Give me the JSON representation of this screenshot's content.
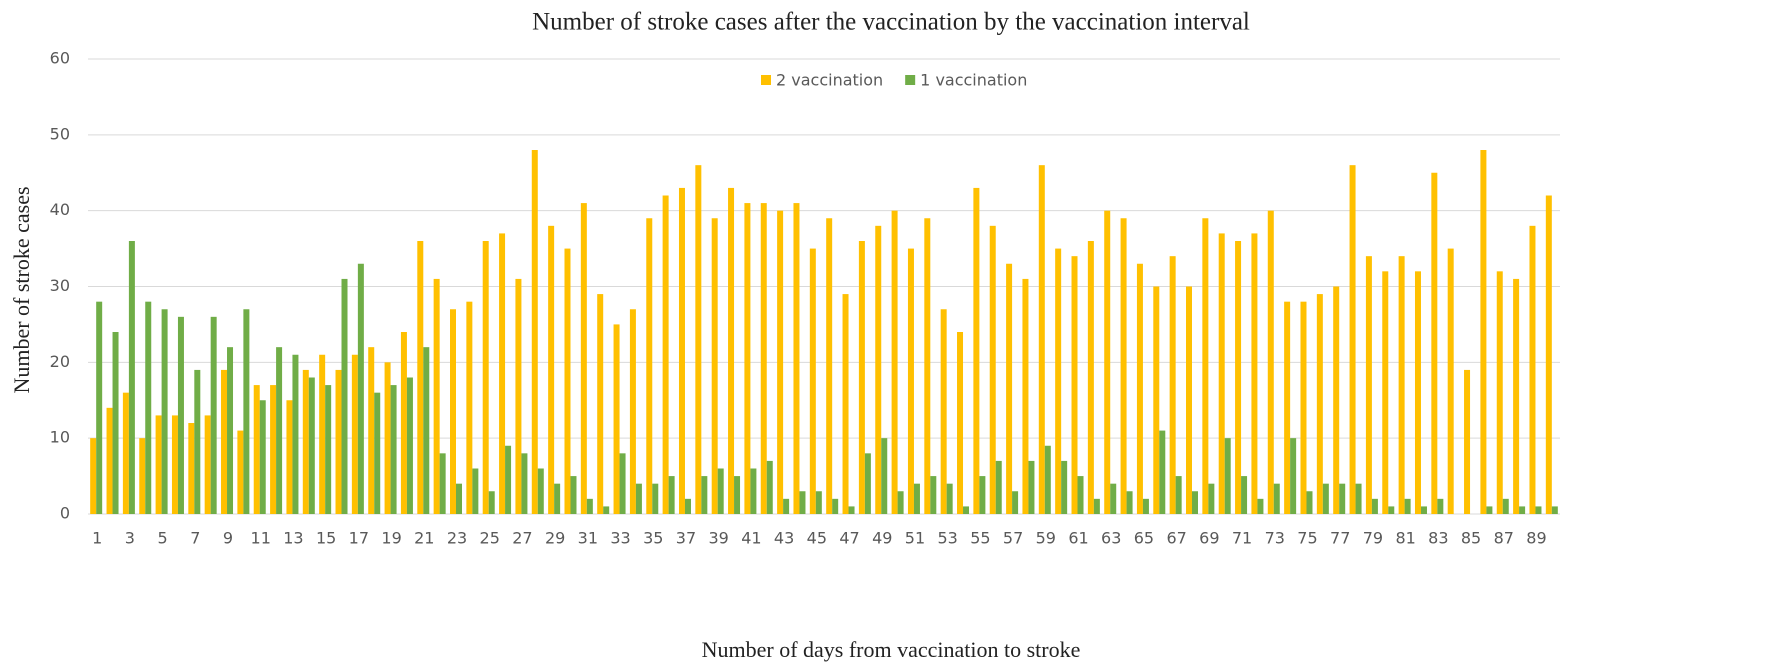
{
  "chart_data": {
    "type": "bar",
    "title": "Number of stroke cases after the vaccination by the vaccination interval",
    "x_label": "Number of days from vaccination to stroke",
    "y_label": "Number of stroke cases",
    "categories": [
      1,
      null,
      3,
      null,
      5,
      null,
      7,
      null,
      9,
      null,
      11,
      null,
      13,
      null,
      15,
      null,
      17,
      null,
      19,
      null,
      21,
      null,
      23,
      null,
      25,
      null,
      27,
      null,
      29,
      null,
      31,
      null,
      33,
      null,
      35,
      null,
      37,
      null,
      39,
      null,
      41,
      null,
      43,
      null,
      45,
      null,
      47,
      null,
      49,
      null,
      51,
      null,
      53,
      null,
      55,
      null,
      57,
      null,
      59,
      null,
      61,
      null,
      63,
      null,
      65,
      null,
      67,
      null,
      69,
      null,
      71,
      null,
      73,
      null,
      75,
      null,
      77,
      null,
      79,
      null,
      81,
      null,
      83,
      null,
      85,
      null,
      87,
      null,
      89,
      null
    ],
    "series": [
      {
        "name": "2 vaccination",
        "color": "#ffc000",
        "values": [
          10,
          14,
          16,
          10,
          13,
          13,
          12,
          13,
          19,
          11,
          17,
          17,
          15,
          19,
          21,
          19,
          21,
          22,
          20,
          24,
          36,
          31,
          27,
          28,
          36,
          37,
          31,
          48,
          38,
          35,
          41,
          29,
          25,
          27,
          39,
          42,
          43,
          46,
          39,
          43,
          41,
          41,
          40,
          41,
          35,
          39,
          29,
          36,
          38,
          40,
          35,
          39,
          27,
          24,
          43,
          38,
          33,
          31,
          46,
          35,
          34,
          36,
          40,
          39,
          33,
          30,
          34,
          30,
          39,
          37,
          36,
          37,
          40,
          28,
          28,
          29,
          30,
          46,
          34,
          32,
          34,
          32,
          45,
          35,
          19,
          48,
          32,
          31,
          38,
          42
        ]
      },
      {
        "name": "1 vaccination",
        "color": "#70ad47",
        "values": [
          28,
          24,
          36,
          28,
          27,
          26,
          19,
          26,
          22,
          27,
          15,
          22,
          21,
          18,
          17,
          31,
          33,
          16,
          17,
          18,
          22,
          8,
          4,
          6,
          3,
          9,
          8,
          6,
          4,
          5,
          2,
          1,
          8,
          4,
          4,
          5,
          2,
          5,
          6,
          5,
          6,
          7,
          2,
          3,
          3,
          2,
          1,
          8,
          10,
          3,
          4,
          5,
          4,
          1,
          5,
          7,
          3,
          7,
          9,
          7,
          5,
          2,
          4,
          3,
          2,
          11,
          5,
          3,
          4,
          10,
          5,
          2,
          4,
          10,
          3,
          4,
          4,
          4,
          2,
          1,
          2,
          1,
          2,
          0,
          0,
          1,
          2,
          1,
          1,
          1
        ]
      }
    ],
    "ylim": [
      0,
      60
    ],
    "yticks": [
      0,
      10,
      20,
      30,
      40,
      50,
      60
    ],
    "grid": true,
    "legend": "top"
  }
}
